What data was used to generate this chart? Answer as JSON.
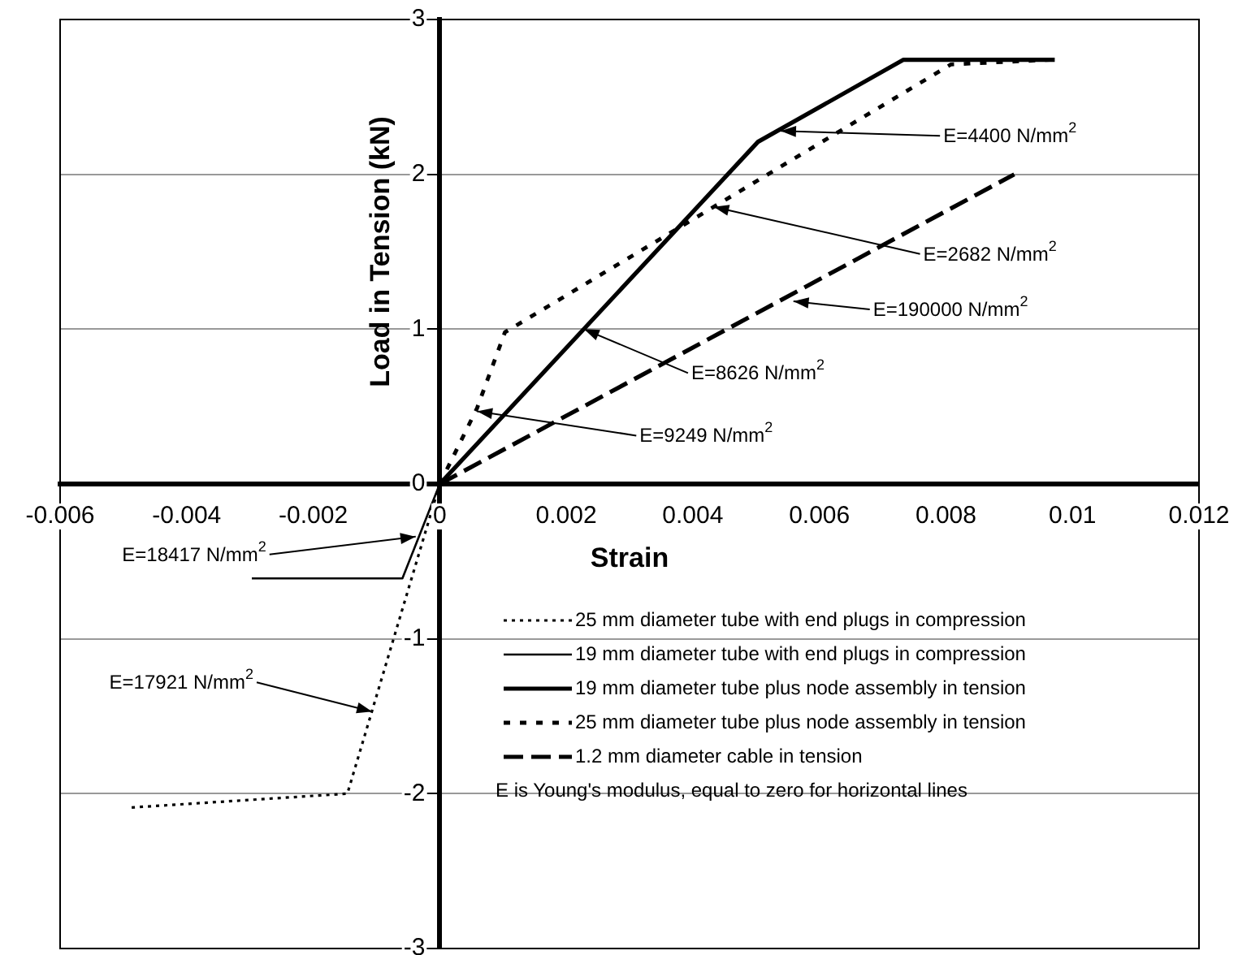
{
  "chart_data": {
    "type": "line",
    "xlabel": "Strain",
    "ylabel": "Load in Tension (kN)",
    "xlim": [
      -0.006,
      0.012
    ],
    "xticks": [
      -0.006,
      -0.004,
      -0.002,
      0,
      0.002,
      0.004,
      0.006,
      0.008,
      0.01,
      0.012
    ],
    "ylim": [
      -3,
      3
    ],
    "yticks": [
      -3,
      -2,
      -1,
      0,
      1,
      2,
      3
    ],
    "grid": "y",
    "legend": "bottom right",
    "marker": "none",
    "series": [
      {
        "name": "25 mm diameter tube with end plugs in compression",
        "color": "#000000",
        "line_style": "dotted",
        "x": [
          0,
          -0.00146,
          -0.0049
        ],
        "values": [
          0,
          -2.0,
          -2.09
        ]
      },
      {
        "name": "19 mm diameter tube with end plugs in compression",
        "color": "#000000",
        "line_style": "solid",
        "x": [
          0,
          -0.00059,
          -0.00297
        ],
        "values": [
          0,
          -0.61,
          -0.61
        ]
      },
      {
        "name": "19 mm diameter tube plus node assembly in tension",
        "color": "#000000",
        "line_style": "solid",
        "x": [
          0,
          0.00503,
          0.00733,
          0.00972
        ],
        "values": [
          0,
          2.21,
          2.74,
          2.74
        ]
      },
      {
        "name": "25 mm diameter tube plus node assembly in tension",
        "color": "#000000",
        "line_style": "dashed",
        "x": [
          0,
          0.00059,
          0.00103,
          0.00808,
          0.00964
        ],
        "values": [
          0,
          0.49,
          0.98,
          2.71,
          2.74
        ]
      },
      {
        "name": "1.2 mm diameter cable in tension",
        "color": "#000000",
        "line_style": "dashed",
        "x": [
          0,
          0.00908
        ],
        "values": [
          0,
          2.0
        ]
      }
    ],
    "annotations": [
      {
        "text": "E=4400 N/mm$^{2}$",
        "x": 0.00539,
        "y": 2.28
      },
      {
        "text": "E=2682 N/mm$^{2}$",
        "x": 0.00433,
        "y": 1.79
      },
      {
        "text": "E=190000 N/mm$^{2}$",
        "x": 0.00559,
        "y": 1.18
      },
      {
        "text": "E=8626 N/mm$^{2}$",
        "x": 0.00228,
        "y": 1.0
      },
      {
        "text": "E=9249 N/mm$^{2}$",
        "x": 0.00059,
        "y": 0.47
      },
      {
        "text": "E=18417 N/mm$^{2}$",
        "x": -0.00038,
        "y": -0.34
      },
      {
        "text": "E=17921 N/mm$^{2}$",
        "x": -0.00107,
        "y": -1.47
      },
      "E is Young's modulus, equal to zero for horizontal lines"
    ]
  }
}
